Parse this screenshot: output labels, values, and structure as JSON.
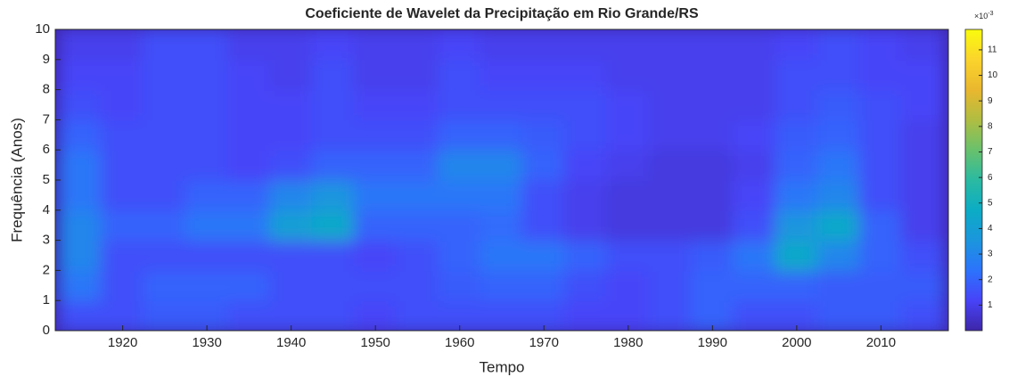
{
  "chart_data": {
    "type": "heatmap",
    "title": "Coeficiente de Wavelet da Precipitação em Rio Grande/RS",
    "x_label": "Tempo",
    "y_label": "Frequência (Anos)",
    "x": [
      1915,
      1920,
      1925,
      1930,
      1935,
      1940,
      1945,
      1950,
      1955,
      1960,
      1965,
      1970,
      1975,
      1980,
      1985,
      1990,
      1995,
      2000,
      2005,
      2010,
      2015
    ],
    "y": [
      0.5,
      1.5,
      2.5,
      3.5,
      4.5,
      5.5,
      6.5,
      7.5,
      8.5,
      9.5
    ],
    "z": [
      [
        1.5,
        1.5,
        1.8,
        1.8,
        1.5,
        1.5,
        1.5,
        1.2,
        1.5,
        1.5,
        1.5,
        1.5,
        1.2,
        1.2,
        1.5,
        2,
        1.5,
        1.5,
        1.8,
        1.8,
        1.5
      ],
      [
        2.5,
        1.5,
        2,
        2,
        2,
        1.5,
        1.5,
        1.5,
        1.5,
        1.8,
        2,
        2,
        1.5,
        1.2,
        1.5,
        2,
        2,
        2,
        1.8,
        1.8,
        1.8
      ],
      [
        3,
        1.5,
        1.5,
        1.5,
        1.5,
        1.5,
        1.5,
        1.2,
        1.5,
        2,
        2.5,
        2.5,
        2,
        1.5,
        1.5,
        1.8,
        2.5,
        4.5,
        3,
        2,
        1.5
      ],
      [
        3,
        2,
        2,
        2.5,
        2.5,
        4,
        4.5,
        2,
        2,
        2,
        2.2,
        1.5,
        1,
        0.8,
        0.8,
        0.8,
        1.5,
        3.5,
        4.5,
        2,
        1
      ],
      [
        2.5,
        1.5,
        1.5,
        2,
        2,
        3,
        3.5,
        2.5,
        2.5,
        2.5,
        2.5,
        1.5,
        1,
        0.8,
        0.8,
        0.8,
        1.2,
        2.5,
        3,
        1.5,
        1
      ],
      [
        2.5,
        1.5,
        1.5,
        1.5,
        1.2,
        1.5,
        2,
        2,
        2,
        3,
        3,
        2,
        1.2,
        1,
        0.8,
        0.8,
        1,
        2,
        2.5,
        1.5,
        1
      ],
      [
        2,
        1.5,
        1.5,
        1.5,
        1.2,
        1.2,
        1.5,
        1.5,
        1.5,
        2,
        2,
        1.8,
        1.5,
        1.2,
        1,
        1,
        1.2,
        1.8,
        2,
        1.5,
        1
      ],
      [
        1.5,
        1.2,
        1.5,
        1.5,
        1.2,
        1.2,
        1.5,
        1.2,
        1.2,
        1.5,
        1.5,
        1.5,
        1.5,
        1.2,
        1,
        1,
        1,
        1.5,
        1.8,
        1.5,
        1.2
      ],
      [
        1.2,
        1.2,
        1.5,
        1.5,
        1.2,
        1,
        1.5,
        1,
        1,
        1.5,
        1.2,
        1.2,
        1.2,
        1,
        1,
        1,
        1,
        1.5,
        1.5,
        1.2,
        1.2
      ],
      [
        1,
        1,
        1.5,
        1.5,
        1,
        1,
        1.2,
        1,
        1,
        1.2,
        1,
        1,
        1,
        1,
        1,
        1,
        1,
        1.2,
        1.5,
        1.2,
        1
      ]
    ],
    "xlim": [
      1912,
      2018
    ],
    "xticks": [
      1920,
      1930,
      1940,
      1950,
      1960,
      1970,
      1980,
      1990,
      2000,
      2010
    ],
    "ylim": [
      0,
      10
    ],
    "yticks": [
      0,
      1,
      2,
      3,
      4,
      5,
      6,
      7,
      8,
      9,
      10
    ],
    "colormap": "parula",
    "clim": [
      0,
      11.8
    ],
    "colorbar_ticks": [
      1,
      2,
      3,
      4,
      5,
      6,
      7,
      8,
      9,
      10,
      11
    ],
    "colorbar_multiplier": "×10",
    "colorbar_exponent": "-3"
  }
}
